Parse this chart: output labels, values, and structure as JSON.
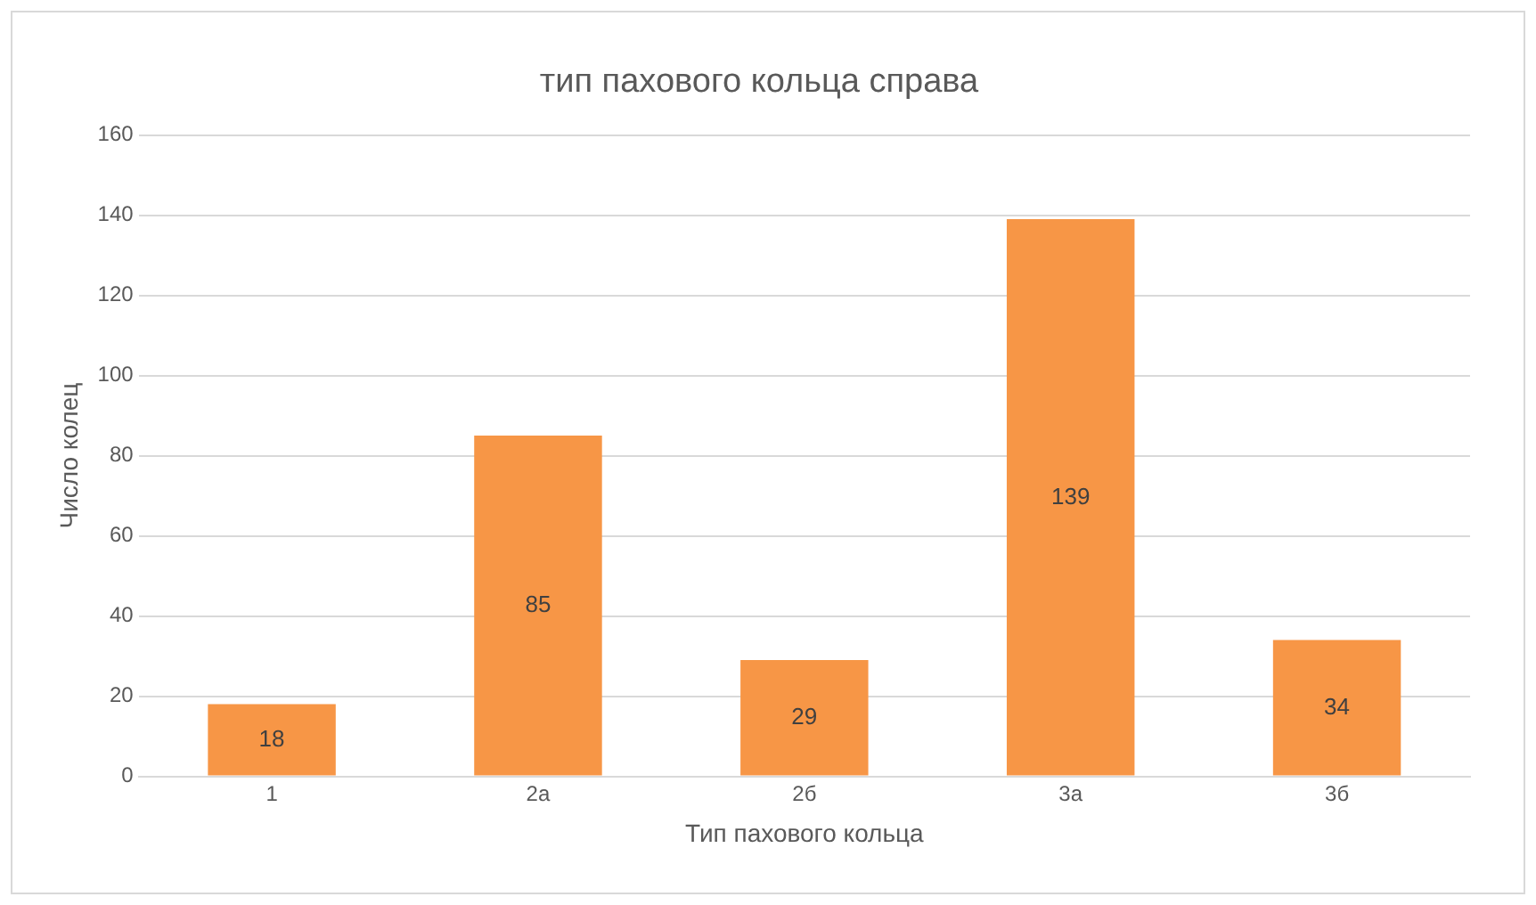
{
  "chart_data": {
    "type": "bar",
    "title": "тип пахового кольца справа",
    "xlabel": "Тип пахового кольца",
    "ylabel": "Число колец",
    "categories": [
      "1",
      "2а",
      "2б",
      "3а",
      "3б"
    ],
    "values": [
      18,
      85,
      29,
      139,
      34
    ],
    "color": "#f79646",
    "ylim": [
      0,
      160
    ],
    "yticks": [
      0,
      20,
      40,
      60,
      80,
      100,
      120,
      140,
      160
    ],
    "grid": "y",
    "data_labels": true,
    "legend": false
  }
}
